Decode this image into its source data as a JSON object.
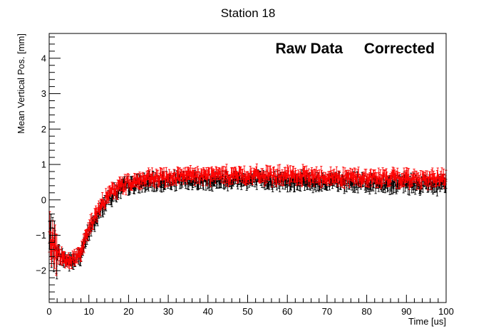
{
  "chart_data": {
    "type": "scatter",
    "title": "Station 18",
    "xlabel": "Time [us]",
    "ylabel": "Mean Vertical Pos. [mm]",
    "xlim": [
      0,
      100
    ],
    "ylim": [
      -2.9,
      4.7
    ],
    "x_ticks": [
      0,
      10,
      20,
      30,
      40,
      50,
      60,
      70,
      80,
      90,
      100
    ],
    "x_tick_labels": [
      "0",
      "10",
      "20",
      "30",
      "40",
      "50",
      "60",
      "70",
      "80",
      "90",
      "100"
    ],
    "y_ticks": [
      -2,
      -1,
      0,
      1,
      2,
      3,
      4
    ],
    "y_tick_labels": [
      "−2",
      "−1",
      "0",
      "1",
      "2",
      "3",
      "4"
    ],
    "grid": false,
    "legend_position": "top-right",
    "series": [
      {
        "name": "Raw Data",
        "color": "#000000",
        "error_bars": true,
        "x": [
          0,
          2,
          4,
          6,
          8,
          10,
          12,
          14,
          16,
          18,
          20,
          25,
          30,
          35,
          40,
          45,
          50,
          55,
          60,
          65,
          70,
          75,
          80,
          85,
          90,
          95,
          100
        ],
        "values": [
          -1.0,
          -1.5,
          -1.7,
          -1.75,
          -1.55,
          -0.9,
          -0.5,
          -0.1,
          0.15,
          0.3,
          0.4,
          0.48,
          0.52,
          0.55,
          0.55,
          0.57,
          0.55,
          0.55,
          0.54,
          0.52,
          0.5,
          0.5,
          0.48,
          0.46,
          0.45,
          0.43,
          0.42
        ]
      },
      {
        "name": "Corrected",
        "color": "#ff0000",
        "error_bars": true,
        "x": [
          0,
          2,
          4,
          6,
          8,
          10,
          12,
          14,
          16,
          18,
          20,
          25,
          30,
          35,
          40,
          45,
          50,
          55,
          60,
          65,
          70,
          75,
          80,
          85,
          90,
          95,
          100
        ],
        "values": [
          -1.0,
          -1.5,
          -1.65,
          -1.7,
          -1.45,
          -0.8,
          -0.4,
          0.0,
          0.25,
          0.4,
          0.5,
          0.58,
          0.64,
          0.67,
          0.68,
          0.7,
          0.69,
          0.68,
          0.67,
          0.67,
          0.65,
          0.64,
          0.63,
          0.62,
          0.61,
          0.6,
          0.6
        ]
      }
    ]
  }
}
